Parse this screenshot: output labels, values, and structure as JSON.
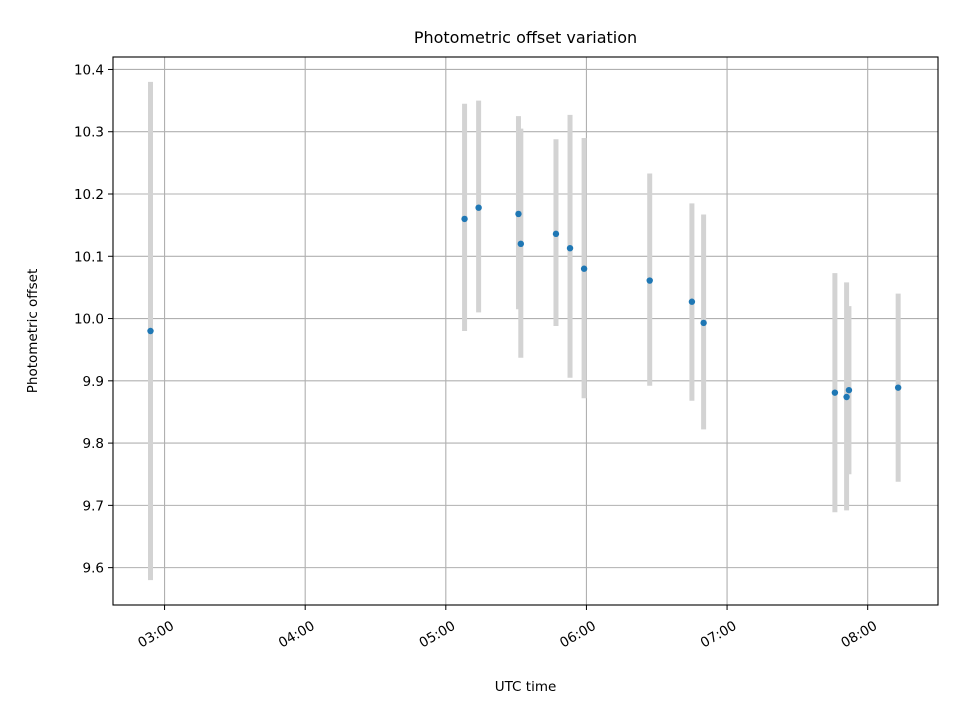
{
  "chart_data": {
    "type": "scatter",
    "title": "Photometric offset variation",
    "xlabel": "UTC time",
    "ylabel": "Photometric offset",
    "xlim": [
      "02:38",
      "08:30"
    ],
    "ylim": [
      9.54,
      10.42
    ],
    "x_ticks": [
      "03:00",
      "04:00",
      "05:00",
      "06:00",
      "07:00",
      "08:00"
    ],
    "y_ticks": [
      "9.6",
      "9.7",
      "9.8",
      "9.9",
      "10.0",
      "10.1",
      "10.2",
      "10.3",
      "10.4"
    ],
    "grid": true,
    "point_color": "#1f77b4",
    "errorbar_color": "#d3d3d3",
    "points": [
      {
        "x": "02:54",
        "y": 9.98,
        "ylow": 9.58,
        "yhigh": 10.38
      },
      {
        "x": "05:08",
        "y": 10.16,
        "ylow": 9.98,
        "yhigh": 10.345
      },
      {
        "x": "05:14",
        "y": 10.178,
        "ylow": 10.01,
        "yhigh": 10.35
      },
      {
        "x": "05:31",
        "y": 10.168,
        "ylow": 10.015,
        "yhigh": 10.325
      },
      {
        "x": "05:32",
        "y": 10.12,
        "ylow": 9.937,
        "yhigh": 10.305
      },
      {
        "x": "05:47",
        "y": 10.136,
        "ylow": 9.988,
        "yhigh": 10.288
      },
      {
        "x": "05:53",
        "y": 10.113,
        "ylow": 9.905,
        "yhigh": 10.327
      },
      {
        "x": "05:59",
        "y": 10.08,
        "ylow": 9.872,
        "yhigh": 10.29
      },
      {
        "x": "06:27",
        "y": 10.061,
        "ylow": 9.892,
        "yhigh": 10.233
      },
      {
        "x": "06:45",
        "y": 10.027,
        "ylow": 9.868,
        "yhigh": 10.185
      },
      {
        "x": "06:50",
        "y": 9.993,
        "ylow": 9.822,
        "yhigh": 10.167
      },
      {
        "x": "07:46",
        "y": 9.881,
        "ylow": 9.689,
        "yhigh": 10.073
      },
      {
        "x": "07:51",
        "y": 9.874,
        "ylow": 9.692,
        "yhigh": 10.058
      },
      {
        "x": "07:52",
        "y": 9.885,
        "ylow": 9.75,
        "yhigh": 10.02
      },
      {
        "x": "08:13",
        "y": 9.889,
        "ylow": 9.738,
        "yhigh": 10.04
      }
    ]
  }
}
